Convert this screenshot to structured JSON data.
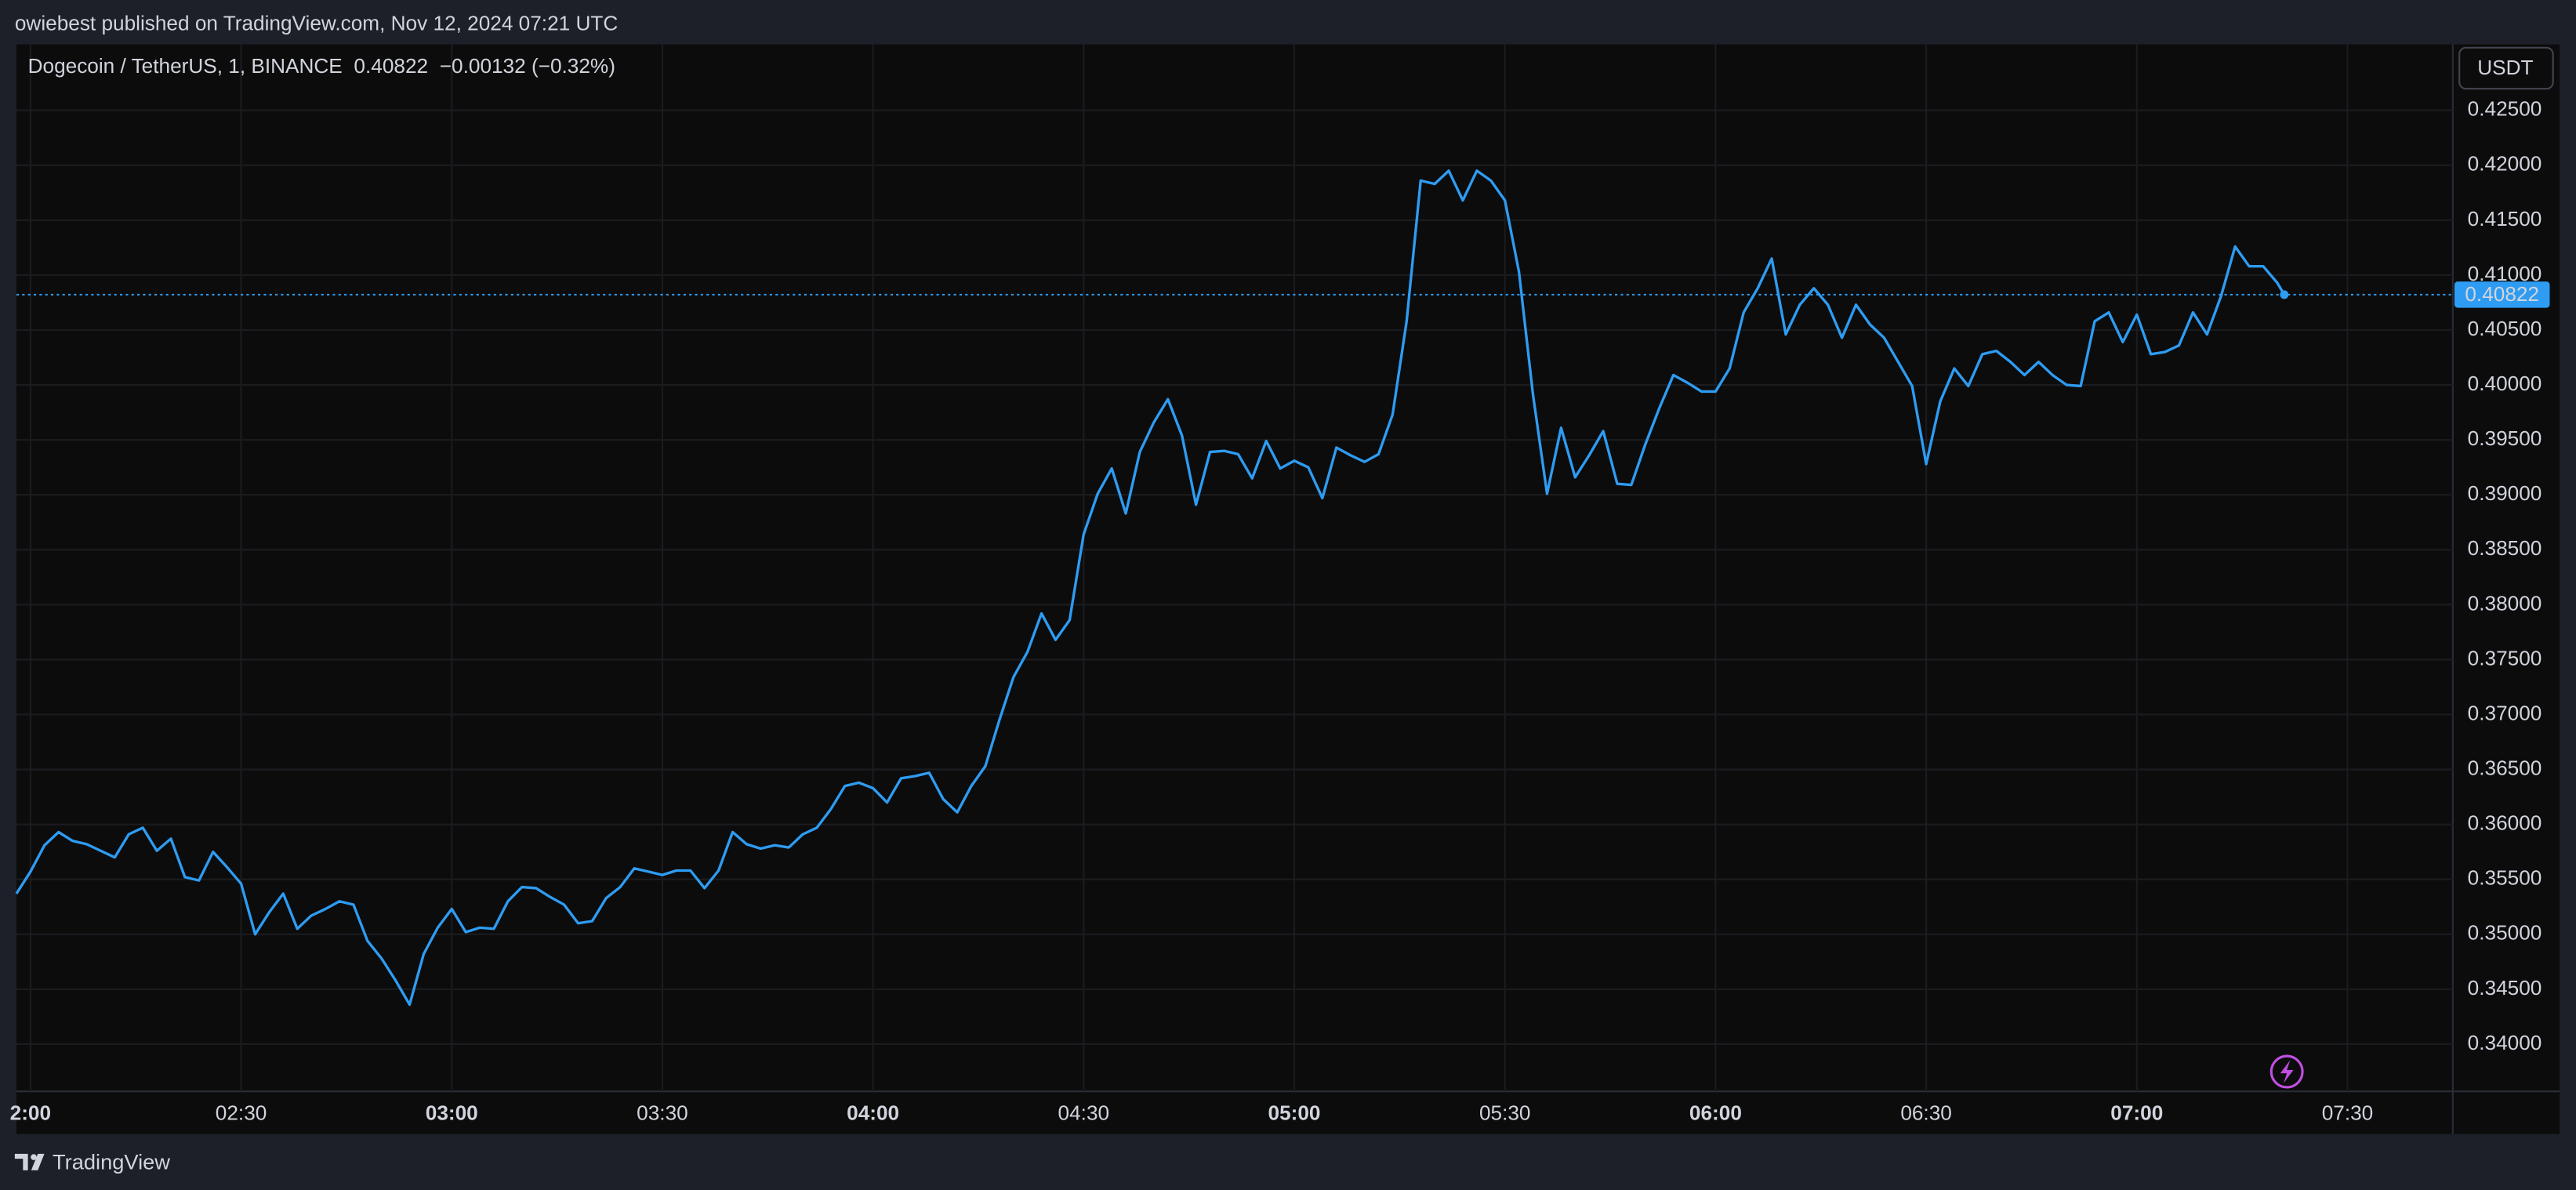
{
  "published": "owiebest published on TradingView.com, Nov 12, 2024 07:21 UTC",
  "brand": "TradingView",
  "chart_data": {
    "type": "line",
    "title": "Dogecoin / TetherUS, 1, BINANCE",
    "change": "−0.00132 (−0.32%)",
    "currency": "USDT",
    "color": "#2e9cf2",
    "grid": true,
    "last_price_line": true,
    "x": [
      "01:58",
      "02:00",
      "02:02",
      "02:04",
      "02:06",
      "02:08",
      "02:10",
      "02:12",
      "02:14",
      "02:16",
      "02:18",
      "02:20",
      "02:22",
      "02:24",
      "02:26",
      "02:28",
      "02:30",
      "02:32",
      "02:34",
      "02:36",
      "02:38",
      "02:40",
      "02:42",
      "02:44",
      "02:46",
      "02:48",
      "02:50",
      "02:52",
      "02:54",
      "02:56",
      "02:58",
      "03:00",
      "03:02",
      "03:04",
      "03:06",
      "03:08",
      "03:10",
      "03:12",
      "03:14",
      "03:16",
      "03:18",
      "03:20",
      "03:22",
      "03:24",
      "03:26",
      "03:28",
      "03:30",
      "03:32",
      "03:34",
      "03:36",
      "03:38",
      "03:40",
      "03:42",
      "03:44",
      "03:46",
      "03:48",
      "03:50",
      "03:52",
      "03:54",
      "03:56",
      "03:58",
      "04:00",
      "04:02",
      "04:04",
      "04:06",
      "04:08",
      "04:10",
      "04:12",
      "04:14",
      "04:16",
      "04:18",
      "04:20",
      "04:22",
      "04:24",
      "04:26",
      "04:28",
      "04:30",
      "04:32",
      "04:34",
      "04:36",
      "04:38",
      "04:40",
      "04:42",
      "04:44",
      "04:46",
      "04:48",
      "04:50",
      "04:52",
      "04:54",
      "04:56",
      "04:58",
      "05:00",
      "05:02",
      "05:04",
      "05:06",
      "05:08",
      "05:10",
      "05:12",
      "05:14",
      "05:16",
      "05:18",
      "05:20",
      "05:22",
      "05:24",
      "05:26",
      "05:28",
      "05:30",
      "05:32",
      "05:34",
      "05:36",
      "05:38",
      "05:40",
      "05:42",
      "05:44",
      "05:46",
      "05:48",
      "05:50",
      "05:52",
      "05:54",
      "05:56",
      "05:58",
      "06:00",
      "06:02",
      "06:04",
      "06:06",
      "06:08",
      "06:10",
      "06:12",
      "06:14",
      "06:16",
      "06:18",
      "06:20",
      "06:22",
      "06:24",
      "06:26",
      "06:28",
      "06:30",
      "06:32",
      "06:34",
      "06:36",
      "06:38",
      "06:40",
      "06:42",
      "06:44",
      "06:46",
      "06:48",
      "06:50",
      "06:52",
      "06:54",
      "06:56",
      "06:58",
      "07:00",
      "07:02",
      "07:04",
      "07:06",
      "07:08",
      "07:10",
      "07:12",
      "07:14",
      "07:16",
      "07:18",
      "07:20",
      "07:21"
    ],
    "values": [
      0.3537,
      0.3557,
      0.3581,
      0.3593,
      0.3585,
      0.3582,
      0.3576,
      0.357,
      0.3591,
      0.3597,
      0.3576,
      0.3587,
      0.3552,
      0.3549,
      0.3575,
      0.3561,
      0.3546,
      0.35,
      0.352,
      0.3537,
      0.3505,
      0.3517,
      0.3523,
      0.353,
      0.3527,
      0.3494,
      0.3478,
      0.3458,
      0.3436,
      0.3482,
      0.3506,
      0.3523,
      0.3502,
      0.3506,
      0.3505,
      0.353,
      0.3543,
      0.3542,
      0.3534,
      0.3527,
      0.351,
      0.3512,
      0.3533,
      0.3543,
      0.356,
      0.3557,
      0.3554,
      0.3558,
      0.3558,
      0.3542,
      0.3558,
      0.3593,
      0.3582,
      0.3578,
      0.3581,
      0.3579,
      0.3591,
      0.3597,
      0.3614,
      0.3635,
      0.3638,
      0.3633,
      0.362,
      0.3642,
      0.3644,
      0.3647,
      0.3623,
      0.3611,
      0.3635,
      0.3653,
      0.3695,
      0.3734,
      0.3757,
      0.3792,
      0.3768,
      0.3786,
      0.3864,
      0.3901,
      0.3924,
      0.3883,
      0.3939,
      0.3966,
      0.3987,
      0.3954,
      0.3891,
      0.3939,
      0.394,
      0.3937,
      0.3915,
      0.3949,
      0.3924,
      0.3931,
      0.3925,
      0.3897,
      0.3943,
      0.3936,
      0.393,
      0.3937,
      0.3973,
      0.4058,
      0.4186,
      0.4183,
      0.4195,
      0.4168,
      0.4195,
      0.4186,
      0.4168,
      0.4103,
      0.3991,
      0.3901,
      0.3961,
      0.3916,
      0.3936,
      0.3958,
      0.391,
      0.3909,
      0.3946,
      0.3979,
      0.4009,
      0.4002,
      0.3994,
      0.3994,
      0.4015,
      0.4066,
      0.4088,
      0.4115,
      0.4046,
      0.4073,
      0.4088,
      0.4073,
      0.4043,
      0.4073,
      0.4055,
      0.4043,
      0.4021,
      0.3999,
      0.3928,
      0.3985,
      0.4015,
      0.3999,
      0.4028,
      0.4031,
      0.4021,
      0.4009,
      0.4021,
      0.4009,
      0.4,
      0.3999,
      0.4058,
      0.4066,
      0.4039,
      0.4064,
      0.4028,
      0.403,
      0.4036,
      0.4066,
      0.4046,
      0.4081,
      0.4126,
      0.4108,
      0.4108,
      0.4093,
      0.40822
    ],
    "xlim": [
      "01:58",
      "07:45"
    ],
    "xticks": [
      {
        "value": "02:00",
        "label": "2:00"
      },
      "02:30",
      "03:00",
      "03:30",
      "04:00",
      "04:30",
      "05:00",
      "05:30",
      "06:00",
      "06:30",
      "07:00",
      "07:30"
    ],
    "ylim": [
      0.3357,
      0.431
    ],
    "yticks": [
      {
        "value": 0.34,
        "label": "0.34000"
      },
      {
        "value": 0.345,
        "label": "0.34500"
      },
      {
        "value": 0.35,
        "label": "0.35000"
      },
      {
        "value": 0.355,
        "label": "0.35500"
      },
      {
        "value": 0.36,
        "label": "0.36000"
      },
      {
        "value": 0.365,
        "label": "0.36500"
      },
      {
        "value": 0.37,
        "label": "0.37000"
      },
      {
        "value": 0.375,
        "label": "0.37500"
      },
      {
        "value": 0.38,
        "label": "0.38000"
      },
      {
        "value": 0.385,
        "label": "0.38500"
      },
      {
        "value": 0.39,
        "label": "0.39000"
      },
      {
        "value": 0.395,
        "label": "0.39500"
      },
      {
        "value": 0.4,
        "label": "0.40000"
      },
      {
        "value": 0.405,
        "label": "0.40500"
      },
      {
        "value": 0.41,
        "label": "0.41000"
      },
      {
        "value": 0.415,
        "label": "0.41500"
      },
      {
        "value": 0.42,
        "label": "0.42000"
      },
      {
        "value": 0.425,
        "label": "0.42500"
      }
    ]
  }
}
